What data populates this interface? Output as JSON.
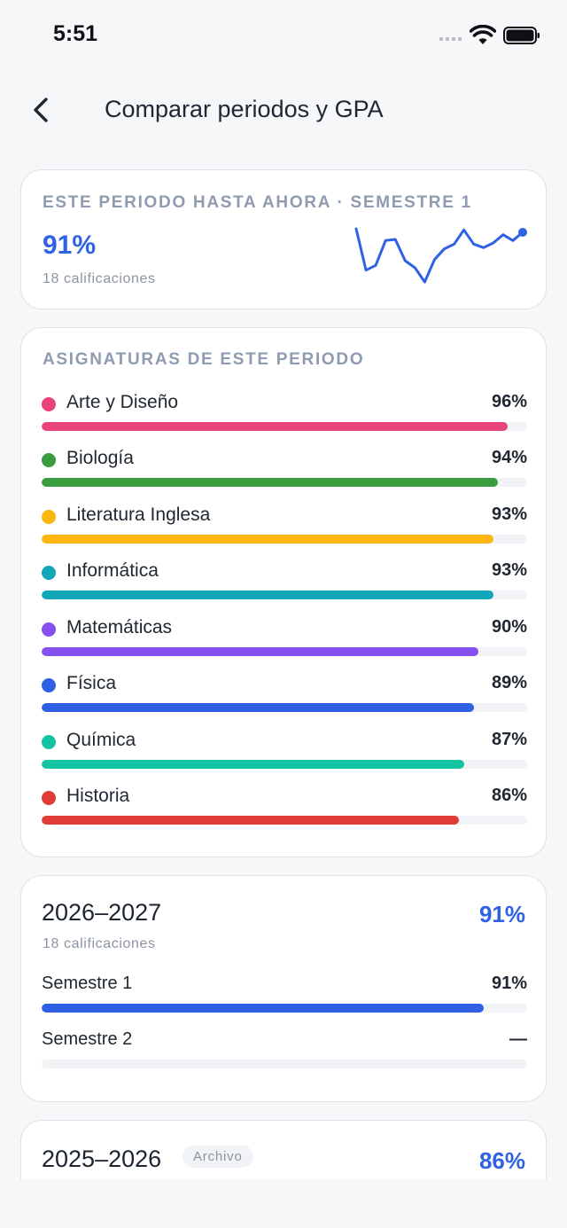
{
  "status": {
    "time": "5:51"
  },
  "header": {
    "title": "Comparar periodos y GPA"
  },
  "current": {
    "eyebrow": "ESTE PERIODO HASTA AHORA · SEMESTRE 1",
    "percent": "91%",
    "count": "18 calificaciones",
    "trend": [
      97,
      62,
      66,
      87,
      88,
      70,
      64,
      52,
      71,
      80,
      84,
      96,
      84,
      81,
      85,
      92,
      87,
      94
    ]
  },
  "subjects": {
    "eyebrow": "ASIGNATURAS DE ESTE PERIODO",
    "items": [
      {
        "name": "Arte y Diseño",
        "value": "96%",
        "pct": 96,
        "color": "#e8437b"
      },
      {
        "name": "Biología",
        "value": "94%",
        "pct": 94,
        "color": "#3a9c3f"
      },
      {
        "name": "Literatura Inglesa",
        "value": "93%",
        "pct": 93,
        "color": "#fbb60f"
      },
      {
        "name": "Informática",
        "value": "93%",
        "pct": 93,
        "color": "#12a7b8"
      },
      {
        "name": "Matemáticas",
        "value": "90%",
        "pct": 90,
        "color": "#8450ee"
      },
      {
        "name": "Física",
        "value": "89%",
        "pct": 89,
        "color": "#2f5fe3"
      },
      {
        "name": "Química",
        "value": "87%",
        "pct": 87,
        "color": "#13c3a2"
      },
      {
        "name": "Historia",
        "value": "86%",
        "pct": 86,
        "color": "#e03b36"
      }
    ]
  },
  "years": [
    {
      "label": "2026–2027",
      "percent": "91%",
      "count": "18 calificaciones",
      "terms": [
        {
          "name": "Semestre 1",
          "value": "91%",
          "pct": 91,
          "color": "#2f5fe3"
        },
        {
          "name": "Semestre 2",
          "value": "—",
          "pct": 0,
          "color": "#2f5fe3"
        }
      ]
    },
    {
      "label": "2025–2026",
      "chip": "Archivo",
      "percent": "86%"
    }
  ],
  "colors": {
    "accent": "#2f62e2",
    "muted": "#8f9bb0"
  }
}
